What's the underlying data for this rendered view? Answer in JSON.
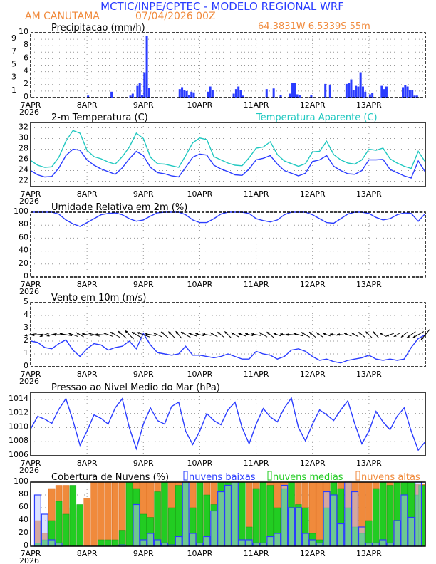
{
  "header": {
    "title": "MCTIC/INPE/CPTEC - MODELO REGIONAL WRF",
    "location": "AM CANUTAMA",
    "run": "07/04/2026 00Z",
    "coords": "64.3831W 6.5339S 55m"
  },
  "colors": {
    "blue": "#2a3cff",
    "orange": "#f08a3c",
    "cyan": "#20c8c0",
    "green": "#22cc22",
    "black": "#000000"
  },
  "x_axis": {
    "labels": [
      "7APR",
      "8APR",
      "9APR",
      "10APR",
      "11APR",
      "12APR",
      "13APR"
    ],
    "year": "2026",
    "hours_total": 168
  },
  "chart_data": [
    {
      "id": "precip",
      "type": "bar",
      "title": "Precipitacao (mm/h)",
      "ylim": [
        0,
        10
      ],
      "yticks": [
        0,
        1,
        2,
        3,
        4,
        5,
        6,
        7,
        8,
        9,
        10
      ],
      "series": [
        {
          "name": "Precipitacao",
          "color": "#2a3cff",
          "points": [
            [
              25,
              0.3
            ],
            [
              35,
              0.9
            ],
            [
              43,
              0.3
            ],
            [
              44,
              0.6
            ],
            [
              46,
              1.8
            ],
            [
              47,
              2.3
            ],
            [
              48,
              0.4
            ],
            [
              49,
              3.9
            ],
            [
              50,
              9.5
            ],
            [
              51,
              1.5
            ],
            [
              64,
              1.3
            ],
            [
              65,
              1.6
            ],
            [
              66,
              1.2
            ],
            [
              67,
              1.0
            ],
            [
              68,
              0.4
            ],
            [
              69,
              0.9
            ],
            [
              70,
              0.8
            ],
            [
              76,
              0.9
            ],
            [
              77,
              1.7
            ],
            [
              78,
              1.2
            ],
            [
              87,
              0.6
            ],
            [
              88,
              1.3
            ],
            [
              89,
              1.7
            ],
            [
              90,
              1.2
            ],
            [
              91,
              0.3
            ],
            [
              101,
              1.3
            ],
            [
              104,
              1.4
            ],
            [
              107,
              0.4
            ],
            [
              111,
              0.6
            ],
            [
              112,
              2.3
            ],
            [
              113,
              2.3
            ],
            [
              114,
              0.5
            ],
            [
              115,
              0.4
            ],
            [
              120,
              0.4
            ],
            [
              126,
              2.1
            ],
            [
              128,
              2.0
            ],
            [
              135,
              2.1
            ],
            [
              136,
              2.2
            ],
            [
              137,
              2.8
            ],
            [
              138,
              1.2
            ],
            [
              139,
              1.8
            ],
            [
              140,
              1.7
            ],
            [
              141,
              3.9
            ],
            [
              142,
              1.7
            ],
            [
              143,
              0.9
            ],
            [
              145,
              0.5
            ],
            [
              146,
              0.7
            ],
            [
              150,
              1.8
            ],
            [
              151,
              1.3
            ],
            [
              152,
              1.7
            ],
            [
              159,
              1.6
            ],
            [
              160,
              1.9
            ],
            [
              161,
              1.7
            ],
            [
              162,
              1.2
            ],
            [
              163,
              1.1
            ],
            [
              164,
              0.3
            ],
            [
              165,
              0.3
            ]
          ]
        }
      ]
    },
    {
      "id": "temp",
      "type": "line",
      "title": "2-m Temperatura (C)",
      "title2": "Temperatura Aparente (C)",
      "ylim": [
        21,
        33
      ],
      "yticks": [
        22,
        24,
        26,
        28,
        30,
        32
      ],
      "step_hours": 3,
      "series": [
        {
          "name": "2-m Temperatura (C)",
          "color": "#2a3cff",
          "values": [
            24.0,
            23.2,
            22.8,
            22.9,
            24.5,
            26.8,
            28.0,
            27.8,
            26.0,
            25.0,
            24.3,
            23.8,
            23.3,
            24.5,
            26.2,
            27.6,
            26.8,
            24.6,
            23.6,
            23.4,
            23.0,
            22.8,
            24.6,
            26.5,
            27.1,
            26.9,
            25.0,
            24.3,
            23.8,
            23.2,
            23.1,
            24.3,
            26.0,
            26.3,
            26.8,
            25.2,
            24.0,
            23.5,
            23.0,
            23.5,
            25.7,
            26.0,
            26.8,
            24.8,
            24.0,
            23.4,
            23.3,
            24.0,
            26.0,
            26.0,
            26.1,
            24.2,
            23.6,
            23.0,
            22.6,
            25.8,
            23.7
          ]
        },
        {
          "name": "Temperatura Aparente (C)",
          "color": "#20c8c0",
          "values": [
            25.9,
            25.0,
            24.6,
            24.7,
            26.5,
            29.5,
            31.5,
            31.0,
            27.8,
            26.6,
            26.2,
            25.6,
            25.2,
            26.6,
            28.4,
            31.0,
            30.0,
            26.5,
            25.3,
            25.2,
            24.9,
            24.6,
            26.8,
            29.2,
            30.1,
            29.8,
            26.6,
            26.0,
            25.4,
            25.0,
            24.9,
            26.4,
            28.2,
            28.4,
            29.4,
            27.0,
            25.8,
            25.3,
            24.8,
            25.3,
            27.5,
            27.6,
            29.5,
            27.0,
            26.0,
            25.4,
            25.2,
            26.0,
            28.0,
            27.8,
            28.2,
            26.2,
            25.4,
            24.8,
            24.4,
            27.6,
            25.6
          ]
        }
      ]
    },
    {
      "id": "rh",
      "type": "line",
      "title": "Umidade Relativa em 2m (%)",
      "ylim": [
        0,
        100
      ],
      "yticks": [
        0,
        20,
        40,
        60,
        80,
        100
      ],
      "step_hours": 3,
      "series": [
        {
          "name": "Umidade Relativa",
          "color": "#2a3cff",
          "values": [
            100,
            100,
            100,
            100,
            97,
            88,
            82,
            78,
            84,
            90,
            96,
            98,
            99,
            96,
            90,
            86,
            88,
            94,
            99,
            100,
            100,
            100,
            96,
            88,
            84,
            84,
            90,
            97,
            100,
            100,
            100,
            98,
            90,
            87,
            85,
            88,
            96,
            100,
            100,
            100,
            96,
            90,
            84,
            83,
            90,
            97,
            100,
            100,
            98,
            92,
            88,
            90,
            96,
            99,
            98,
            86,
            98
          ]
        }
      ]
    },
    {
      "id": "wind",
      "type": "line",
      "title": "Vento em 10m (m/s)",
      "ylim": [
        0,
        5
      ],
      "yticks": [
        0,
        1,
        2,
        3,
        4,
        5
      ],
      "step_hours": 3,
      "series": [
        {
          "name": "Vento em 10m",
          "color": "#2a3cff",
          "values": [
            2.0,
            1.9,
            1.5,
            1.4,
            1.8,
            2.1,
            1.3,
            0.8,
            1.4,
            1.8,
            1.7,
            1.3,
            1.5,
            1.6,
            2.0,
            1.4,
            2.6,
            1.7,
            1.1,
            1.0,
            0.9,
            1.0,
            1.6,
            0.9,
            0.9,
            0.8,
            0.7,
            0.8,
            1.0,
            0.8,
            0.6,
            0.6,
            1.2,
            1.0,
            0.9,
            0.6,
            0.8,
            1.3,
            1.4,
            1.2,
            0.8,
            0.5,
            0.6,
            0.4,
            0.3,
            0.5,
            0.6,
            0.7,
            0.9,
            0.6,
            0.5,
            0.6,
            0.5,
            0.6,
            1.5,
            2.2,
            2.5
          ]
        }
      ],
      "arrows_level": 2.5,
      "arrow_dir_deg": [
        190,
        185,
        200,
        195,
        180,
        170,
        160,
        150,
        170,
        165,
        175,
        160,
        150,
        140,
        135,
        150,
        160,
        170,
        155,
        140,
        135,
        130,
        150,
        160,
        165,
        170,
        150,
        140,
        135,
        150,
        160,
        165,
        170,
        150,
        140,
        160,
        170,
        175,
        165,
        150,
        140,
        145,
        160,
        170,
        175,
        160,
        150,
        140,
        135,
        130,
        150,
        200,
        210,
        220,
        215,
        210,
        230
      ]
    },
    {
      "id": "press",
      "type": "line",
      "title": "Pressao ao Nivel Medio do Mar (hPa)",
      "ylim": [
        1006,
        1015
      ],
      "yticks": [
        1006,
        1008,
        1010,
        1012,
        1014
      ],
      "step_hours": 3,
      "series": [
        {
          "name": "Pressao",
          "color": "#2a3cff",
          "values": [
            1009.8,
            1011.6,
            1011.2,
            1010.6,
            1012.6,
            1014.1,
            1011.0,
            1007.5,
            1009.5,
            1011.8,
            1011.3,
            1010.5,
            1012.8,
            1014.1,
            1010.0,
            1007.0,
            1010.5,
            1012.8,
            1011.0,
            1010.5,
            1013.0,
            1013.6,
            1009.5,
            1007.6,
            1009.5,
            1012.0,
            1011.0,
            1010.4,
            1012.5,
            1013.6,
            1010.0,
            1007.7,
            1010.5,
            1012.7,
            1011.5,
            1010.8,
            1012.8,
            1014.2,
            1010.0,
            1008.1,
            1010.5,
            1012.5,
            1011.8,
            1011.0,
            1012.5,
            1013.8,
            1010.5,
            1007.7,
            1009.5,
            1012.3,
            1010.8,
            1009.7,
            1011.6,
            1012.8,
            1009.5,
            1006.8,
            1008.0
          ]
        }
      ]
    },
    {
      "id": "cloud",
      "type": "bar",
      "title": "Cobertura de Nuvens (%)",
      "ylim": [
        0,
        100
      ],
      "yticks": [
        0,
        20,
        40,
        60,
        80,
        100
      ],
      "step_hours": 3,
      "series": [
        {
          "name": "nuvens altas",
          "color": "#f08a3c",
          "values": [
            0,
            40,
            20,
            90,
            95,
            95,
            60,
            45,
            75,
            100,
            100,
            100,
            100,
            100,
            100,
            100,
            100,
            100,
            100,
            100,
            100,
            100,
            100,
            100,
            100,
            100,
            100,
            100,
            100,
            100,
            100,
            100,
            100,
            100,
            100,
            100,
            100,
            100,
            100,
            100,
            100,
            100,
            100,
            100,
            100,
            100,
            100,
            100,
            100,
            100,
            100,
            100,
            100,
            100,
            97,
            97,
            97
          ]
        },
        {
          "name": "nuvens medias",
          "color": "#22cc22",
          "values": [
            0,
            5,
            10,
            40,
            70,
            50,
            95,
            65,
            0,
            0,
            10,
            10,
            10,
            25,
            100,
            90,
            50,
            45,
            85,
            100,
            60,
            95,
            100,
            60,
            100,
            80,
            65,
            100,
            100,
            100,
            100,
            30,
            90,
            100,
            95,
            60,
            90,
            100,
            65,
            60,
            20,
            10,
            60,
            100,
            90,
            60,
            30,
            20,
            40,
            90,
            100,
            95,
            100,
            100,
            100,
            80,
            95
          ]
        },
        {
          "name": "nuvens baixas",
          "color": "#2a3cff",
          "values": [
            0,
            80,
            50,
            10,
            5,
            0,
            0,
            0,
            0,
            0,
            0,
            0,
            0,
            2,
            0,
            65,
            10,
            20,
            10,
            5,
            2,
            15,
            100,
            20,
            5,
            15,
            55,
            85,
            95,
            100,
            10,
            10,
            5,
            5,
            15,
            20,
            95,
            60,
            60,
            20,
            10,
            5,
            85,
            80,
            35,
            100,
            85,
            30,
            5,
            5,
            10,
            5,
            40,
            80,
            45,
            100,
            0
          ]
        }
      ]
    }
  ]
}
